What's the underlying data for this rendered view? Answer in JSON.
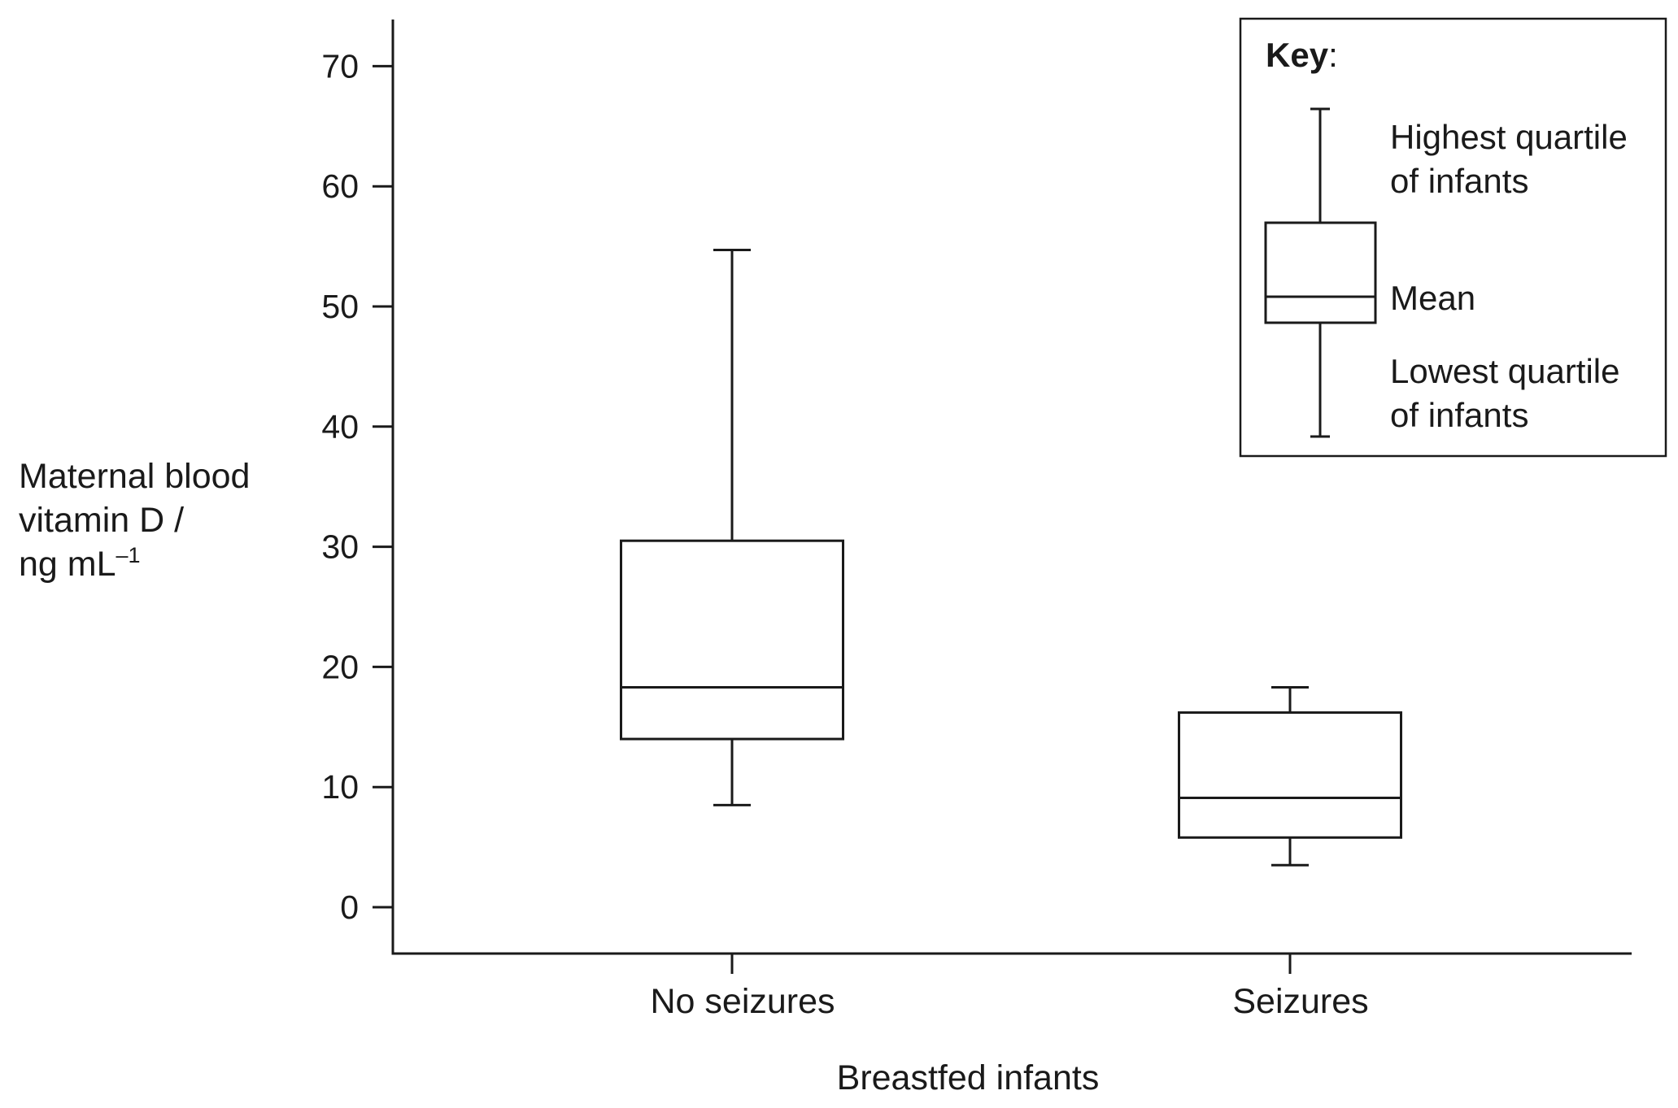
{
  "chart_data": {
    "type": "box",
    "xlabel": "Breastfed infants",
    "ylabel_lines": [
      "Maternal blood",
      "vitamin D /",
      "ng mL"
    ],
    "ylabel_unit_superscript": "–1",
    "ylim": [
      0,
      70
    ],
    "yticks": [
      0,
      10,
      20,
      30,
      40,
      50,
      60,
      70
    ],
    "grid": false,
    "categories": [
      "No seizures",
      "Seizures"
    ],
    "boxes": [
      {
        "category": "No seizures",
        "whisker_low": 8.5,
        "q1": 14,
        "mean": 18.3,
        "q3": 30.5,
        "whisker_high": 54.7
      },
      {
        "category": "Seizures",
        "whisker_low": 3.5,
        "q1": 5.8,
        "mean": 9.1,
        "q3": 16.2,
        "whisker_high": 18.3
      }
    ],
    "legend": {
      "position": "top-right",
      "title_bold": "Key",
      "title_rest": ":",
      "highest_lines": [
        "Highest quartile",
        "of infants"
      ],
      "mean_label": "Mean",
      "lowest_lines": [
        "Lowest quartile",
        "of infants"
      ]
    },
    "colors": {
      "stroke": "#1a1a1a",
      "background": "#ffffff"
    }
  }
}
